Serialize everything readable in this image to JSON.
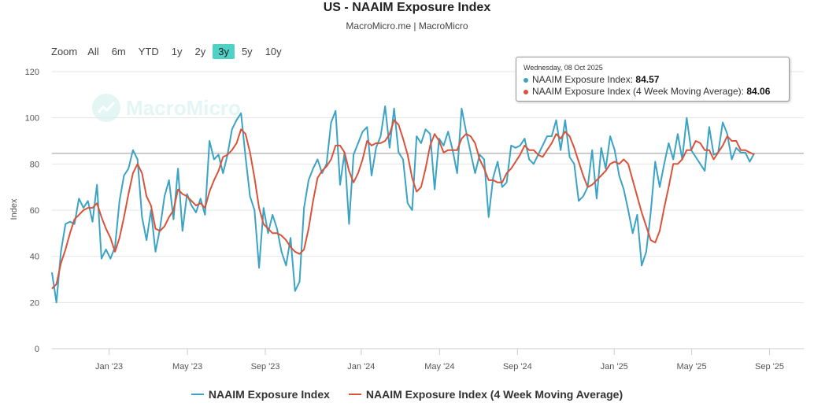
{
  "chart_data": {
    "type": "line",
    "title": "US - NAAIM Exposure Index",
    "subtitle": "MacroMicro.me | MacroMicro",
    "ylabel": "Index",
    "ylim": [
      0,
      120
    ],
    "yticks": [
      0,
      20,
      40,
      60,
      80,
      100,
      120
    ],
    "xlim": [
      0,
      167
    ],
    "xticks": [
      {
        "label": "Jan '23",
        "x": 12.7
      },
      {
        "label": "May '23",
        "x": 30.1
      },
      {
        "label": "Sep '23",
        "x": 47.4
      },
      {
        "label": "Jan '24",
        "x": 68.7
      },
      {
        "label": "May '24",
        "x": 86.1
      },
      {
        "label": "Sep '24",
        "x": 103.4
      },
      {
        "label": "Jan '25",
        "x": 124.9
      },
      {
        "label": "May '25",
        "x": 142.1
      },
      {
        "label": "Sep '25",
        "x": 159.4
      }
    ],
    "reference_line": 84.57,
    "series": [
      {
        "name": "NAAIM Exposure Index",
        "color": "#3ba3c4",
        "values": [
          33,
          20,
          42,
          54,
          55,
          54,
          65,
          61,
          64,
          55,
          71,
          39,
          43,
          39,
          44,
          64,
          75,
          78,
          86,
          82,
          57,
          47,
          60,
          42,
          52,
          66,
          73,
          56,
          78,
          51,
          67,
          62,
          59,
          65,
          58,
          90,
          82,
          84,
          76,
          84,
          95,
          99,
          102,
          83,
          66,
          60,
          35,
          61,
          50,
          58,
          52,
          42,
          36,
          48,
          25,
          29,
          61,
          73,
          78,
          82,
          76,
          80,
          98,
          103,
          71,
          85,
          54,
          84,
          89,
          94,
          96,
          75,
          87,
          92,
          105,
          87,
          104,
          85,
          82,
          63,
          60,
          92,
          89,
          95,
          93,
          69,
          91,
          88,
          94,
          86,
          76,
          104,
          94,
          85,
          76,
          84,
          82,
          57,
          74,
          81,
          70,
          72,
          88,
          87,
          88,
          91,
          82,
          80,
          84,
          88,
          92,
          92,
          99,
          86,
          99,
          83,
          80,
          64,
          66,
          70,
          86,
          65,
          87,
          78,
          92,
          86,
          75,
          69,
          60,
          50,
          58,
          36,
          42,
          59,
          81,
          70,
          80,
          89,
          82,
          93,
          82,
          100,
          86,
          83,
          80,
          77,
          96,
          84,
          85,
          98,
          93,
          82,
          87,
          85,
          85,
          81,
          84.57
        ]
      },
      {
        "name": "NAAIM Exposure Index (4 Week Moving Average)",
        "color": "#d9533b",
        "values": [
          26,
          28,
          37,
          43,
          50,
          56,
          58,
          60,
          61,
          61,
          63,
          57,
          52,
          48,
          42,
          48,
          57,
          67,
          76,
          80,
          76,
          66,
          62,
          52,
          51,
          53,
          57,
          60,
          69,
          67,
          66,
          64,
          62,
          63,
          61,
          68,
          73,
          77,
          83,
          84,
          86,
          89,
          95,
          93,
          85,
          74,
          61,
          54,
          52,
          50,
          50,
          49,
          47,
          44,
          42,
          41,
          43,
          52,
          64,
          74,
          77,
          79,
          82,
          88,
          88,
          85,
          77,
          72,
          76,
          82,
          90,
          88,
          89,
          89,
          90,
          93,
          99,
          97,
          91,
          84,
          74,
          68,
          70,
          78,
          88,
          93,
          90,
          85,
          86,
          86,
          86,
          91,
          93,
          92,
          89,
          82,
          78,
          73,
          73,
          72,
          72,
          76,
          78,
          81,
          84,
          88,
          86,
          86,
          84,
          83,
          86,
          89,
          93,
          91,
          94,
          92,
          87,
          81,
          75,
          70,
          71,
          73,
          75,
          77,
          80,
          81,
          80,
          82,
          80,
          73,
          66,
          59,
          53,
          47,
          46,
          51,
          61,
          70,
          80,
          80,
          82,
          86,
          86,
          90,
          89,
          86,
          86,
          82,
          85,
          88,
          92,
          90,
          90,
          86,
          86,
          85,
          84.06
        ]
      }
    ]
  },
  "range_selector": {
    "zoom_label": "Zoom",
    "buttons": [
      "All",
      "6m",
      "YTD",
      "1y",
      "2y",
      "3y",
      "5y",
      "10y"
    ],
    "selected": "3y"
  },
  "tooltip": {
    "date": "Wednesday, 08 Oct 2025",
    "rows": [
      {
        "label": "NAAIM Exposure Index: ",
        "value": "84.57",
        "color": "#3ba3c4"
      },
      {
        "label": "NAAIM Exposure Index (4 Week Moving Average): ",
        "value": "84.06",
        "color": "#d9533b"
      }
    ]
  },
  "watermark": "MacroMicro",
  "colors": {
    "accent": "#4fd1c5",
    "grid": "#e6e6e6",
    "axis": "#cccccc"
  }
}
